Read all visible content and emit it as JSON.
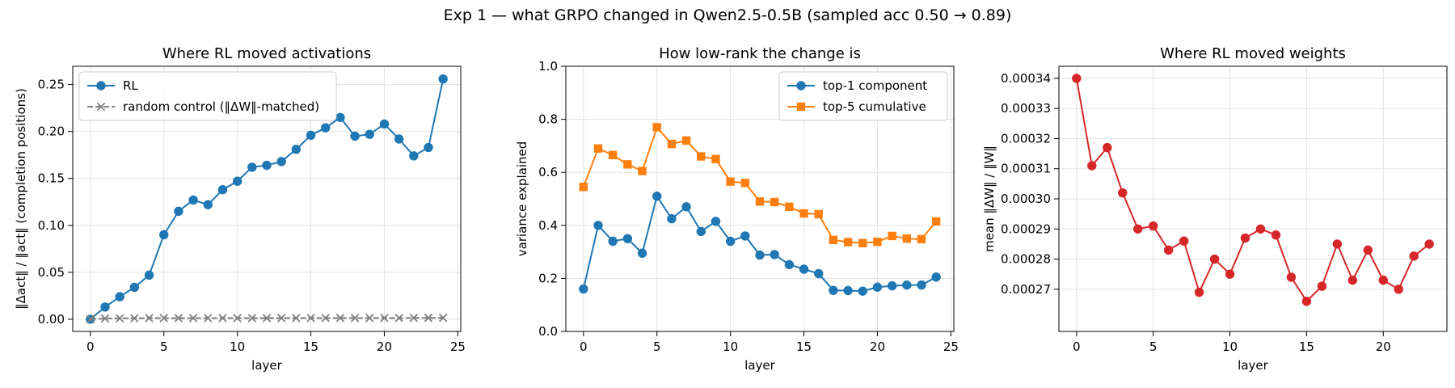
{
  "suptitle": "Exp 1 — what GRPO changed in Qwen2.5-0.5B (sampled acc 0.50 → 0.89)",
  "chart_data": [
    {
      "type": "line",
      "title": "Where RL moved activations",
      "xlabel": "layer",
      "ylabel": "‖Δact‖ / ‖act‖ (completion positions)",
      "xlim": [
        -1.2,
        25.2
      ],
      "ylim": [
        -0.013,
        0.2695
      ],
      "xticks": [
        0,
        5,
        10,
        15,
        20,
        25
      ],
      "yticks": [
        0.0,
        0.05,
        0.1,
        0.15,
        0.2,
        0.25
      ],
      "ytick_labels": [
        "0.00",
        "0.05",
        "0.10",
        "0.15",
        "0.20",
        "0.25"
      ],
      "grid": true,
      "legend": "upper left",
      "x": [
        0,
        1,
        2,
        3,
        4,
        5,
        6,
        7,
        8,
        9,
        10,
        11,
        12,
        13,
        14,
        15,
        16,
        17,
        18,
        19,
        20,
        21,
        22,
        23,
        24
      ],
      "series": [
        {
          "name": "RL",
          "color": "#1f77b4",
          "marker": "circle",
          "linestyle": "solid",
          "values": [
            0.0,
            0.013,
            0.024,
            0.034,
            0.047,
            0.09,
            0.115,
            0.127,
            0.122,
            0.138,
            0.147,
            0.162,
            0.164,
            0.168,
            0.181,
            0.196,
            0.204,
            0.215,
            0.195,
            0.197,
            0.208,
            0.192,
            0.174,
            0.183,
            0.256
          ]
        },
        {
          "name": "random control (‖ΔW‖-matched)",
          "color": "#7f7f7f",
          "marker": "x",
          "linestyle": "dashed",
          "values": [
            0.0,
            0.0008,
            0.001,
            0.001,
            0.0012,
            0.0012,
            0.0012,
            0.0012,
            0.0012,
            0.0012,
            0.0012,
            0.0012,
            0.0012,
            0.0012,
            0.0012,
            0.0013,
            0.0013,
            0.0013,
            0.0013,
            0.0013,
            0.0013,
            0.0013,
            0.0014,
            0.0014,
            0.0015
          ]
        }
      ]
    },
    {
      "type": "line",
      "title": "How low-rank the change is",
      "xlabel": "layer",
      "ylabel": "variance explained",
      "xlim": [
        -1.2,
        25.2
      ],
      "ylim": [
        0.0,
        1.0
      ],
      "xticks": [
        0,
        5,
        10,
        15,
        20,
        25
      ],
      "yticks": [
        0.0,
        0.2,
        0.4,
        0.6,
        0.8,
        1.0
      ],
      "ytick_labels": [
        "0.0",
        "0.2",
        "0.4",
        "0.6",
        "0.8",
        "1.0"
      ],
      "grid": true,
      "legend": "upper right",
      "x": [
        0,
        1,
        2,
        3,
        4,
        5,
        6,
        7,
        8,
        9,
        10,
        11,
        12,
        13,
        14,
        15,
        16,
        17,
        18,
        19,
        20,
        21,
        22,
        23,
        24
      ],
      "series": [
        {
          "name": "top-1 component",
          "color": "#1f77b4",
          "marker": "circle",
          "linestyle": "solid",
          "values": [
            0.16,
            0.4,
            0.34,
            0.35,
            0.295,
            0.51,
            0.425,
            0.47,
            0.377,
            0.415,
            0.34,
            0.36,
            0.288,
            0.29,
            0.252,
            0.235,
            0.218,
            0.155,
            0.154,
            0.152,
            0.167,
            0.172,
            0.175,
            0.175,
            0.205
          ]
        },
        {
          "name": "top-5 cumulative",
          "color": "#ff7f0e",
          "marker": "square",
          "linestyle": "solid",
          "values": [
            0.545,
            0.69,
            0.665,
            0.63,
            0.605,
            0.77,
            0.707,
            0.72,
            0.66,
            0.65,
            0.565,
            0.56,
            0.49,
            0.488,
            0.47,
            0.445,
            0.442,
            0.345,
            0.337,
            0.333,
            0.338,
            0.36,
            0.35,
            0.348,
            0.415
          ]
        }
      ]
    },
    {
      "type": "line",
      "title": "Where RL moved weights",
      "xlabel": "layer",
      "ylabel": "mean ‖ΔW‖ / ‖W‖",
      "xlim": [
        -1.15,
        24.15
      ],
      "ylim": [
        0.000256,
        0.000344
      ],
      "xticks": [
        0,
        5,
        10,
        15,
        20
      ],
      "yticks": [
        0.00027,
        0.00028,
        0.00029,
        0.0003,
        0.00031,
        0.00032,
        0.00033,
        0.00034
      ],
      "ytick_labels": [
        "0.00027",
        "0.00028",
        "0.00029",
        "0.00030",
        "0.00031",
        "0.00032",
        "0.00033",
        "0.00034"
      ],
      "grid": true,
      "legend": "none",
      "x": [
        0,
        1,
        2,
        3,
        4,
        5,
        6,
        7,
        8,
        9,
        10,
        11,
        12,
        13,
        14,
        15,
        16,
        17,
        18,
        19,
        20,
        21,
        22,
        23
      ],
      "series": [
        {
          "name": "",
          "color": "#d62728",
          "marker": "circle",
          "linestyle": "solid",
          "values": [
            0.00034,
            0.000311,
            0.000317,
            0.000302,
            0.00029,
            0.000291,
            0.000283,
            0.000286,
            0.000269,
            0.00028,
            0.000275,
            0.000287,
            0.00029,
            0.000288,
            0.000274,
            0.000266,
            0.000271,
            0.000285,
            0.000273,
            0.000283,
            0.000273,
            0.00027,
            0.000281,
            0.000285
          ]
        }
      ]
    }
  ]
}
